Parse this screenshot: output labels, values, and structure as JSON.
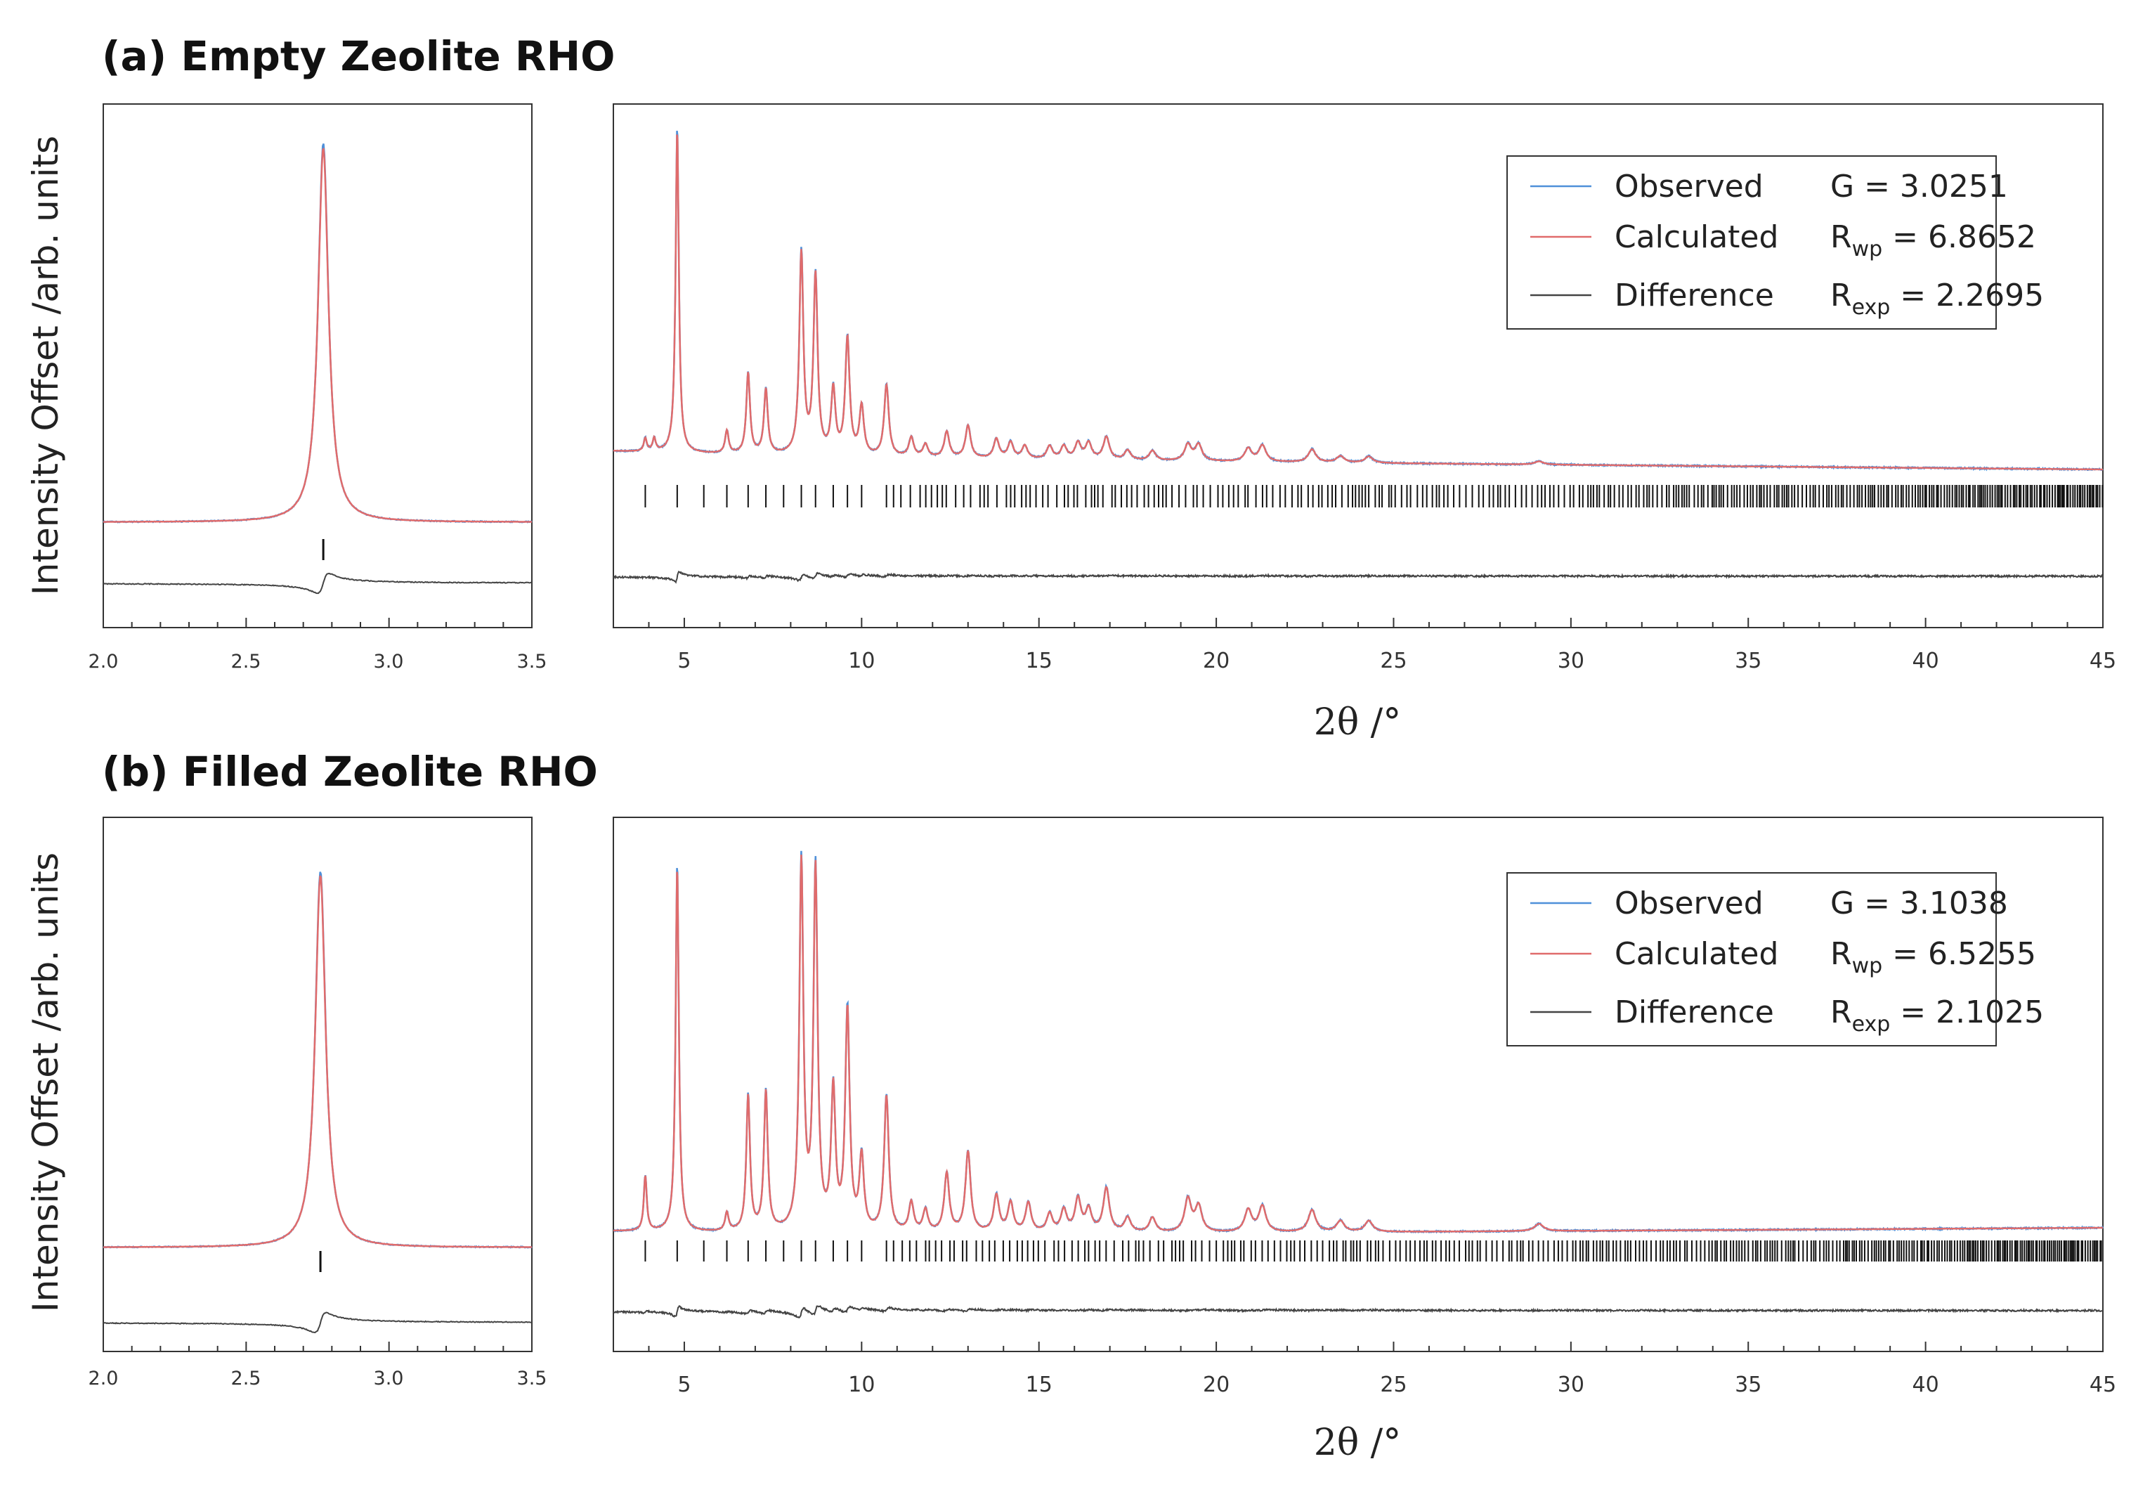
{
  "ylabel": "Intensity Offset /arb. units",
  "xlabel": "2θ /°",
  "colors": {
    "observed": "#4f90d9",
    "calculated": "#e06b6b",
    "difference": "#444444",
    "ticks": "#111111"
  },
  "chart_data": [
    {
      "panel": "a",
      "title": "(a) Empty Zeolite RHO",
      "type": "line",
      "inset": {
        "xlim": [
          2.0,
          3.5
        ],
        "xticks": [
          "2.0",
          "2.5",
          "3.0",
          "3.5"
        ],
        "peak": 2.77,
        "reflection": 2.77
      },
      "main": {
        "xlim": [
          3,
          45
        ],
        "xticks": [
          "5",
          "10",
          "15",
          "20",
          "25",
          "30",
          "35",
          "40",
          "45"
        ],
        "peaks": [
          [
            3.9,
            0.04
          ],
          [
            4.15,
            0.04
          ],
          [
            4.8,
            1.0
          ],
          [
            6.2,
            0.07
          ],
          [
            6.8,
            0.25
          ],
          [
            7.3,
            0.2
          ],
          [
            8.3,
            0.62
          ],
          [
            8.7,
            0.55
          ],
          [
            9.2,
            0.2
          ],
          [
            9.6,
            0.36
          ],
          [
            10.0,
            0.15
          ],
          [
            10.7,
            0.22
          ],
          [
            11.4,
            0.06
          ],
          [
            11.8,
            0.04
          ],
          [
            12.4,
            0.08
          ],
          [
            13.0,
            0.1
          ],
          [
            13.8,
            0.06
          ],
          [
            14.2,
            0.05
          ],
          [
            14.6,
            0.04
          ],
          [
            15.3,
            0.04
          ],
          [
            15.7,
            0.04
          ],
          [
            16.1,
            0.05
          ],
          [
            16.4,
            0.05
          ],
          [
            16.9,
            0.07
          ],
          [
            17.5,
            0.03
          ],
          [
            18.2,
            0.03
          ],
          [
            19.2,
            0.05
          ],
          [
            19.5,
            0.05
          ],
          [
            20.9,
            0.04
          ],
          [
            21.3,
            0.05
          ],
          [
            22.7,
            0.04
          ],
          [
            23.5,
            0.02
          ],
          [
            24.3,
            0.02
          ],
          [
            29.1,
            0.01
          ]
        ],
        "reflections": [
          3.9,
          4.8,
          5.55,
          6.2,
          6.8,
          7.3,
          7.8,
          8.3,
          8.7,
          9.2,
          9.6,
          10.0,
          10.7
        ],
        "dense_start": 10.9
      },
      "legend": [
        {
          "label": "Observed",
          "stat": "G = 3.0251"
        },
        {
          "label": "Calculated",
          "stat_main": "R",
          "stat_sub": "wp",
          "stat_rest": " = 6.8652"
        },
        {
          "label": "Difference",
          "stat_main": "R",
          "stat_sub": "exp",
          "stat_rest": " = 2.2695"
        }
      ]
    },
    {
      "panel": "b",
      "title": "(b) Filled Zeolite RHO",
      "type": "line",
      "inset": {
        "xlim": [
          2.0,
          3.5
        ],
        "xticks": [
          "2.0",
          "2.5",
          "3.0",
          "3.5"
        ],
        "peak": 2.76,
        "reflection": 2.76
      },
      "main": {
        "xlim": [
          3,
          45
        ],
        "xticks": [
          "5",
          "10",
          "15",
          "20",
          "25",
          "30",
          "35",
          "40",
          "45"
        ],
        "peaks": [
          [
            3.9,
            0.15
          ],
          [
            4.8,
            1.0
          ],
          [
            6.2,
            0.05
          ],
          [
            6.8,
            0.37
          ],
          [
            7.3,
            0.38
          ],
          [
            8.3,
            1.0
          ],
          [
            8.7,
            0.98
          ],
          [
            9.2,
            0.38
          ],
          [
            9.6,
            0.6
          ],
          [
            10.0,
            0.2
          ],
          [
            10.7,
            0.37
          ],
          [
            11.4,
            0.08
          ],
          [
            11.8,
            0.06
          ],
          [
            12.4,
            0.16
          ],
          [
            13.0,
            0.22
          ],
          [
            13.8,
            0.1
          ],
          [
            14.2,
            0.08
          ],
          [
            14.7,
            0.08
          ],
          [
            15.3,
            0.05
          ],
          [
            15.7,
            0.06
          ],
          [
            16.1,
            0.09
          ],
          [
            16.4,
            0.06
          ],
          [
            16.9,
            0.12
          ],
          [
            17.5,
            0.04
          ],
          [
            18.2,
            0.04
          ],
          [
            19.2,
            0.09
          ],
          [
            19.5,
            0.07
          ],
          [
            20.9,
            0.06
          ],
          [
            21.3,
            0.07
          ],
          [
            22.7,
            0.06
          ],
          [
            23.5,
            0.03
          ],
          [
            24.3,
            0.03
          ],
          [
            29.1,
            0.02
          ]
        ],
        "reflections": [
          3.9,
          4.8,
          5.55,
          6.2,
          6.8,
          7.3,
          7.8,
          8.3,
          8.7,
          9.2,
          9.6,
          10.0,
          10.7
        ],
        "dense_start": 10.9
      },
      "legend": [
        {
          "label": "Observed",
          "stat": "G = 3.1038"
        },
        {
          "label": "Calculated",
          "stat_main": "R",
          "stat_sub": "wp",
          "stat_rest": " = 6.5255"
        },
        {
          "label": "Difference",
          "stat_main": "R",
          "stat_sub": "exp",
          "stat_rest": " = 2.1025"
        }
      ]
    }
  ]
}
